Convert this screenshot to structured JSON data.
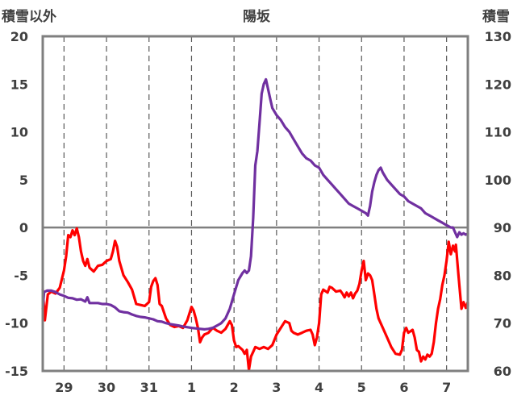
{
  "chart_data": {
    "type": "line",
    "title": "陽坂",
    "left_axis_label": "積雪以外",
    "right_axis_label": "積雪",
    "left_axis": {
      "range": [
        -15,
        20
      ],
      "ticks": [
        "20",
        "15",
        "10",
        "5",
        "0",
        "-5",
        "-10",
        "-15"
      ]
    },
    "right_axis": {
      "range": [
        60,
        130
      ],
      "ticks": [
        "130",
        "120",
        "110",
        "100",
        "90",
        "80",
        "70",
        "60"
      ]
    },
    "x_range": [
      0,
      10
    ],
    "x_ticks": [
      {
        "x": 0.5,
        "label": "29"
      },
      {
        "x": 1.5,
        "label": "30"
      },
      {
        "x": 2.5,
        "label": "31"
      },
      {
        "x": 3.5,
        "label": "1"
      },
      {
        "x": 4.5,
        "label": "2"
      },
      {
        "x": 5.5,
        "label": "3"
      },
      {
        "x": 6.5,
        "label": "4"
      },
      {
        "x": 7.5,
        "label": "5"
      },
      {
        "x": 8.5,
        "label": "6"
      },
      {
        "x": 9.5,
        "label": "7"
      }
    ],
    "grid": "dashed vertical",
    "zero_line": true,
    "series": [
      {
        "axis": "left",
        "color": "#ff0000",
        "points": [
          [
            0.0,
            -6.5
          ],
          [
            0.05,
            -9.7
          ],
          [
            0.12,
            -7.0
          ],
          [
            0.2,
            -6.7
          ],
          [
            0.3,
            -6.9
          ],
          [
            0.4,
            -6.3
          ],
          [
            0.5,
            -4.5
          ],
          [
            0.55,
            -3.0
          ],
          [
            0.6,
            -0.8
          ],
          [
            0.65,
            -1.0
          ],
          [
            0.7,
            -0.3
          ],
          [
            0.75,
            -0.8
          ],
          [
            0.8,
            -0.1
          ],
          [
            0.85,
            -1.0
          ],
          [
            0.9,
            -2.5
          ],
          [
            0.95,
            -3.5
          ],
          [
            1.0,
            -4.0
          ],
          [
            1.05,
            -3.3
          ],
          [
            1.1,
            -4.2
          ],
          [
            1.2,
            -4.6
          ],
          [
            1.3,
            -4.0
          ],
          [
            1.4,
            -3.9
          ],
          [
            1.5,
            -3.5
          ],
          [
            1.6,
            -3.3
          ],
          [
            1.65,
            -2.5
          ],
          [
            1.7,
            -1.4
          ],
          [
            1.75,
            -2.0
          ],
          [
            1.8,
            -3.5
          ],
          [
            1.9,
            -5.0
          ],
          [
            2.0,
            -5.7
          ],
          [
            2.1,
            -6.5
          ],
          [
            2.2,
            -8.0
          ],
          [
            2.3,
            -8.1
          ],
          [
            2.4,
            -8.2
          ],
          [
            2.5,
            -7.8
          ],
          [
            2.55,
            -6.2
          ],
          [
            2.6,
            -5.6
          ],
          [
            2.65,
            -5.3
          ],
          [
            2.7,
            -6.0
          ],
          [
            2.75,
            -8.0
          ],
          [
            2.8,
            -8.2
          ],
          [
            2.9,
            -9.5
          ],
          [
            3.0,
            -10.2
          ],
          [
            3.1,
            -10.4
          ],
          [
            3.2,
            -10.3
          ],
          [
            3.3,
            -10.5
          ],
          [
            3.4,
            -9.7
          ],
          [
            3.45,
            -9.0
          ],
          [
            3.5,
            -8.3
          ],
          [
            3.55,
            -8.7
          ],
          [
            3.6,
            -9.5
          ],
          [
            3.65,
            -10.5
          ],
          [
            3.7,
            -12.0
          ],
          [
            3.75,
            -11.5
          ],
          [
            3.8,
            -11.2
          ],
          [
            3.9,
            -11.0
          ],
          [
            4.0,
            -10.5
          ],
          [
            4.1,
            -10.8
          ],
          [
            4.2,
            -11.0
          ],
          [
            4.3,
            -10.6
          ],
          [
            4.4,
            -9.8
          ],
          [
            4.45,
            -10.2
          ],
          [
            4.5,
            -11.8
          ],
          [
            4.55,
            -12.5
          ],
          [
            4.6,
            -12.4
          ],
          [
            4.7,
            -12.8
          ],
          [
            4.75,
            -13.2
          ],
          [
            4.8,
            -12.8
          ],
          [
            4.85,
            -14.9
          ],
          [
            4.9,
            -13.5
          ],
          [
            4.95,
            -13.0
          ],
          [
            5.0,
            -12.5
          ],
          [
            5.1,
            -12.7
          ],
          [
            5.2,
            -12.5
          ],
          [
            5.3,
            -12.7
          ],
          [
            5.4,
            -12.3
          ],
          [
            5.5,
            -11.2
          ],
          [
            5.6,
            -10.5
          ],
          [
            5.7,
            -9.8
          ],
          [
            5.8,
            -10.0
          ],
          [
            5.85,
            -10.8
          ],
          [
            5.9,
            -11.0
          ],
          [
            6.0,
            -11.2
          ],
          [
            6.1,
            -11.0
          ],
          [
            6.2,
            -10.8
          ],
          [
            6.3,
            -10.7
          ],
          [
            6.35,
            -11.2
          ],
          [
            6.4,
            -12.3
          ],
          [
            6.45,
            -11.5
          ],
          [
            6.5,
            -10.0
          ],
          [
            6.55,
            -7.0
          ],
          [
            6.6,
            -6.5
          ],
          [
            6.7,
            -6.8
          ],
          [
            6.75,
            -6.2
          ],
          [
            6.8,
            -6.3
          ],
          [
            6.9,
            -6.7
          ],
          [
            7.0,
            -6.6
          ],
          [
            7.05,
            -6.9
          ],
          [
            7.1,
            -7.3
          ],
          [
            7.15,
            -6.8
          ],
          [
            7.2,
            -7.2
          ],
          [
            7.25,
            -6.8
          ],
          [
            7.3,
            -7.4
          ],
          [
            7.35,
            -6.9
          ],
          [
            7.4,
            -6.6
          ],
          [
            7.45,
            -5.9
          ],
          [
            7.5,
            -4.5
          ],
          [
            7.55,
            -3.5
          ],
          [
            7.6,
            -5.5
          ],
          [
            7.65,
            -4.8
          ],
          [
            7.7,
            -5.0
          ],
          [
            7.75,
            -5.5
          ],
          [
            7.8,
            -7.0
          ],
          [
            7.85,
            -8.5
          ],
          [
            7.9,
            -9.5
          ],
          [
            8.0,
            -10.5
          ],
          [
            8.1,
            -11.5
          ],
          [
            8.2,
            -12.5
          ],
          [
            8.3,
            -13.2
          ],
          [
            8.4,
            -13.3
          ],
          [
            8.45,
            -12.8
          ],
          [
            8.5,
            -11.0
          ],
          [
            8.55,
            -10.5
          ],
          [
            8.6,
            -11.0
          ],
          [
            8.7,
            -10.7
          ],
          [
            8.75,
            -11.5
          ],
          [
            8.8,
            -12.8
          ],
          [
            8.85,
            -13.0
          ],
          [
            8.9,
            -14.0
          ],
          [
            8.95,
            -13.5
          ],
          [
            9.0,
            -13.8
          ],
          [
            9.05,
            -13.3
          ],
          [
            9.1,
            -13.5
          ],
          [
            9.15,
            -13.2
          ],
          [
            9.2,
            -12.0
          ],
          [
            9.25,
            -10.0
          ],
          [
            9.3,
            -8.5
          ],
          [
            9.35,
            -7.5
          ],
          [
            9.4,
            -6.0
          ],
          [
            9.45,
            -5.0
          ],
          [
            9.5,
            -3.5
          ],
          [
            9.55,
            -1.5
          ],
          [
            9.6,
            -2.8
          ],
          [
            9.65,
            -1.9
          ],
          [
            9.7,
            -2.5
          ],
          [
            9.72,
            -1.8
          ],
          [
            9.78,
            -5.0
          ],
          [
            9.85,
            -8.5
          ],
          [
            9.9,
            -7.8
          ],
          [
            9.95,
            -8.4
          ],
          [
            10.0,
            -7.8
          ],
          [
            10.05,
            -8.2
          ]
        ]
      },
      {
        "axis": "right",
        "color": "#7030a0",
        "points": [
          [
            0.0,
            73.0
          ],
          [
            0.03,
            76.5
          ],
          [
            0.1,
            76.8
          ],
          [
            0.2,
            76.8
          ],
          [
            0.3,
            76.5
          ],
          [
            0.4,
            76.0
          ],
          [
            0.5,
            75.7
          ],
          [
            0.6,
            75.3
          ],
          [
            0.7,
            75.2
          ],
          [
            0.8,
            74.9
          ],
          [
            0.9,
            75.0
          ],
          [
            1.0,
            74.5
          ],
          [
            1.05,
            75.4
          ],
          [
            1.1,
            74.2
          ],
          [
            1.2,
            74.2
          ],
          [
            1.3,
            74.2
          ],
          [
            1.4,
            74.0
          ],
          [
            1.5,
            74.0
          ],
          [
            1.6,
            73.8
          ],
          [
            1.7,
            73.3
          ],
          [
            1.8,
            72.5
          ],
          [
            1.9,
            72.3
          ],
          [
            2.0,
            72.2
          ],
          [
            2.1,
            71.8
          ],
          [
            2.2,
            71.5
          ],
          [
            2.3,
            71.3
          ],
          [
            2.4,
            71.2
          ],
          [
            2.5,
            71.0
          ],
          [
            2.6,
            70.8
          ],
          [
            2.7,
            70.4
          ],
          [
            2.8,
            70.3
          ],
          [
            2.9,
            70.0
          ],
          [
            3.0,
            69.8
          ],
          [
            3.2,
            69.5
          ],
          [
            3.3,
            69.3
          ],
          [
            3.5,
            69.0
          ],
          [
            3.7,
            68.8
          ],
          [
            3.8,
            68.7
          ],
          [
            3.9,
            68.8
          ],
          [
            4.0,
            69.0
          ],
          [
            4.1,
            69.5
          ],
          [
            4.2,
            70.0
          ],
          [
            4.3,
            71.0
          ],
          [
            4.4,
            73.0
          ],
          [
            4.5,
            76.0
          ],
          [
            4.6,
            79.0
          ],
          [
            4.7,
            80.5
          ],
          [
            4.75,
            81.0
          ],
          [
            4.8,
            80.5
          ],
          [
            4.85,
            81.0
          ],
          [
            4.9,
            84.0
          ],
          [
            4.95,
            92.0
          ],
          [
            5.0,
            103.0
          ],
          [
            5.05,
            106.0
          ],
          [
            5.1,
            112.0
          ],
          [
            5.15,
            118.0
          ],
          [
            5.2,
            120.0
          ],
          [
            5.25,
            121.0
          ],
          [
            5.3,
            119.0
          ],
          [
            5.35,
            117.0
          ],
          [
            5.4,
            115.0
          ],
          [
            5.5,
            113.5
          ],
          [
            5.6,
            112.5
          ],
          [
            5.7,
            111.0
          ],
          [
            5.8,
            110.0
          ],
          [
            5.9,
            108.5
          ],
          [
            6.0,
            107.0
          ],
          [
            6.1,
            105.5
          ],
          [
            6.2,
            104.5
          ],
          [
            6.3,
            104.0
          ],
          [
            6.4,
            103.0
          ],
          [
            6.5,
            102.5
          ],
          [
            6.6,
            101.0
          ],
          [
            6.7,
            100.0
          ],
          [
            6.8,
            99.0
          ],
          [
            6.9,
            98.0
          ],
          [
            7.0,
            97.0
          ],
          [
            7.1,
            96.0
          ],
          [
            7.2,
            95.0
          ],
          [
            7.3,
            94.5
          ],
          [
            7.4,
            94.0
          ],
          [
            7.5,
            93.5
          ],
          [
            7.6,
            93.0
          ],
          [
            7.65,
            92.5
          ],
          [
            7.7,
            94.5
          ],
          [
            7.75,
            97.5
          ],
          [
            7.8,
            99.5
          ],
          [
            7.85,
            101.0
          ],
          [
            7.9,
            102.0
          ],
          [
            7.95,
            102.5
          ],
          [
            8.0,
            101.5
          ],
          [
            8.1,
            100.0
          ],
          [
            8.2,
            99.0
          ],
          [
            8.3,
            98.0
          ],
          [
            8.4,
            97.0
          ],
          [
            8.5,
            96.5
          ],
          [
            8.6,
            95.5
          ],
          [
            8.7,
            95.0
          ],
          [
            8.8,
            94.5
          ],
          [
            8.9,
            94.0
          ],
          [
            9.0,
            93.0
          ],
          [
            9.1,
            92.5
          ],
          [
            9.2,
            92.0
          ],
          [
            9.3,
            91.5
          ],
          [
            9.4,
            91.0
          ],
          [
            9.5,
            90.5
          ],
          [
            9.6,
            90.0
          ],
          [
            9.65,
            90.0
          ],
          [
            9.7,
            89.0
          ],
          [
            9.75,
            88.0
          ],
          [
            9.8,
            89.0
          ],
          [
            9.85,
            88.5
          ],
          [
            9.9,
            88.8
          ],
          [
            9.95,
            88.5
          ],
          [
            10.0,
            88.7
          ]
        ]
      }
    ]
  }
}
